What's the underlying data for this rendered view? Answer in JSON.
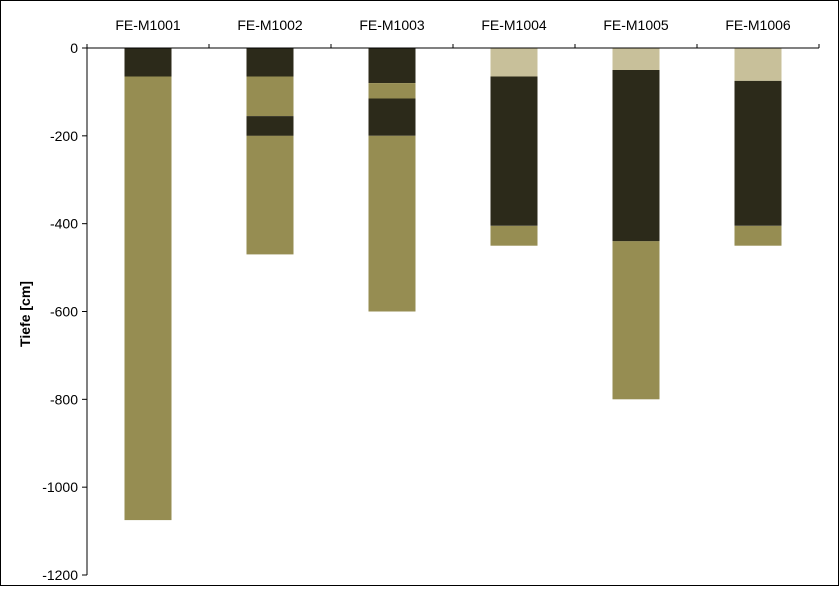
{
  "chart_data": {
    "type": "bar",
    "stacked": true,
    "orientation": "depth-profile",
    "ylabel": "Tiefe [cm]",
    "ylim": [
      -1200,
      0
    ],
    "yticks": [
      0,
      -200,
      -400,
      -600,
      -800,
      -1000,
      -1200
    ],
    "ytick_labels": [
      "0",
      "-200",
      "-400",
      "-600",
      "-800",
      "-1000",
      "-1200"
    ],
    "categories": [
      "FE-M1001",
      "FE-M1002",
      "FE-M1003",
      "FE-M1004",
      "FE-M1005",
      "FE-M1006"
    ],
    "colors": {
      "dark": "#2c2a1a",
      "olive": "#968d52",
      "light": "#c8c09a"
    },
    "grid": false,
    "legend": "none",
    "columns": [
      {
        "name": "FE-M1001",
        "layers": [
          {
            "from": 0,
            "to": -65,
            "color": "dark"
          },
          {
            "from": -65,
            "to": -1075,
            "color": "olive"
          }
        ]
      },
      {
        "name": "FE-M1002",
        "layers": [
          {
            "from": 0,
            "to": -65,
            "color": "dark"
          },
          {
            "from": -65,
            "to": -155,
            "color": "olive"
          },
          {
            "from": -155,
            "to": -200,
            "color": "dark"
          },
          {
            "from": -200,
            "to": -470,
            "color": "olive"
          }
        ]
      },
      {
        "name": "FE-M1003",
        "layers": [
          {
            "from": 0,
            "to": -80,
            "color": "dark"
          },
          {
            "from": -80,
            "to": -115,
            "color": "olive"
          },
          {
            "from": -115,
            "to": -200,
            "color": "dark"
          },
          {
            "from": -200,
            "to": -600,
            "color": "olive"
          }
        ]
      },
      {
        "name": "FE-M1004",
        "layers": [
          {
            "from": 0,
            "to": -65,
            "color": "light"
          },
          {
            "from": -65,
            "to": -405,
            "color": "dark"
          },
          {
            "from": -405,
            "to": -450,
            "color": "olive"
          }
        ]
      },
      {
        "name": "FE-M1005",
        "layers": [
          {
            "from": 0,
            "to": -50,
            "color": "light"
          },
          {
            "from": -50,
            "to": -440,
            "color": "dark"
          },
          {
            "from": -440,
            "to": -800,
            "color": "olive"
          }
        ]
      },
      {
        "name": "FE-M1006",
        "layers": [
          {
            "from": 0,
            "to": -75,
            "color": "light"
          },
          {
            "from": -75,
            "to": -405,
            "color": "dark"
          },
          {
            "from": -405,
            "to": -450,
            "color": "olive"
          }
        ]
      }
    ]
  }
}
